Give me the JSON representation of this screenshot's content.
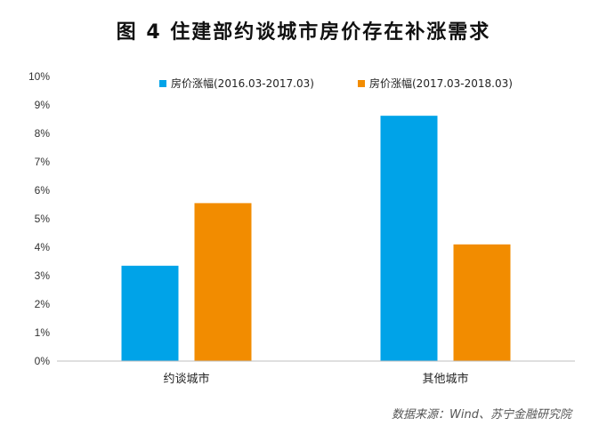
{
  "chart_data": {
    "type": "bar",
    "title": "图 4  住建部约谈城市房价存在补涨需求",
    "categories": [
      "约谈城市",
      "其他城市"
    ],
    "series": [
      {
        "name": "房价涨幅(2016.03-2017.03)",
        "values": [
          3.35,
          8.62
        ],
        "color": "#00A3E8"
      },
      {
        "name": "房价涨幅(2017.03-2018.03)",
        "values": [
          5.55,
          4.1
        ],
        "color": "#F28C00"
      }
    ],
    "ylim": [
      0,
      10
    ],
    "yticks": [
      "0%",
      "1%",
      "2%",
      "3%",
      "4%",
      "5%",
      "6%",
      "7%",
      "8%",
      "9%",
      "10%"
    ],
    "grid": false,
    "legend_position": "top"
  },
  "source": "数据来源：Wind、苏宁金融研究院"
}
